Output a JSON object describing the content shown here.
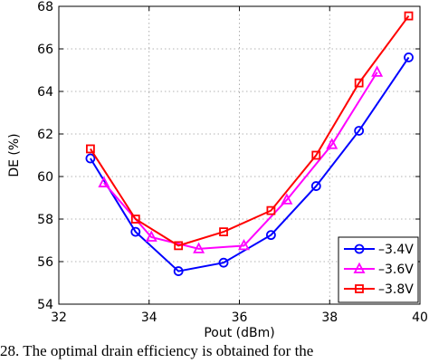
{
  "chart_data": {
    "type": "line",
    "xlabel": "Pout (dBm)",
    "ylabel": "DE (%)",
    "xlim": [
      32,
      40
    ],
    "ylim": [
      54,
      68
    ],
    "xticks": [
      "32",
      "34",
      "36",
      "38",
      "40"
    ],
    "yticks": [
      "54",
      "56",
      "58",
      "60",
      "62",
      "64",
      "66",
      "68"
    ],
    "grid": true,
    "legend_position": "bottom-right",
    "series": [
      {
        "name": "–3.4V",
        "color": "#0000ff",
        "marker": "circle",
        "x": [
          32.7,
          33.7,
          34.65,
          35.65,
          36.7,
          37.7,
          38.65,
          39.75
        ],
        "y": [
          60.85,
          57.4,
          55.55,
          55.95,
          57.25,
          59.55,
          62.15,
          65.6
        ]
      },
      {
        "name": "–3.6V",
        "color": "#ff00ff",
        "marker": "triangle",
        "x": [
          33.0,
          34.05,
          35.1,
          36.1,
          37.05,
          38.05,
          39.05
        ],
        "y": [
          59.7,
          57.15,
          56.6,
          56.75,
          58.9,
          61.5,
          64.9
        ]
      },
      {
        "name": "–3.8V",
        "color": "#ff0000",
        "marker": "square",
        "x": [
          32.7,
          33.7,
          34.65,
          35.65,
          36.7,
          37.7,
          38.65,
          39.75
        ],
        "y": [
          61.3,
          58.0,
          56.75,
          57.4,
          58.4,
          61.0,
          64.4,
          67.55
        ]
      }
    ]
  },
  "caption": "28. The optimal drain efficiency is obtained for the"
}
